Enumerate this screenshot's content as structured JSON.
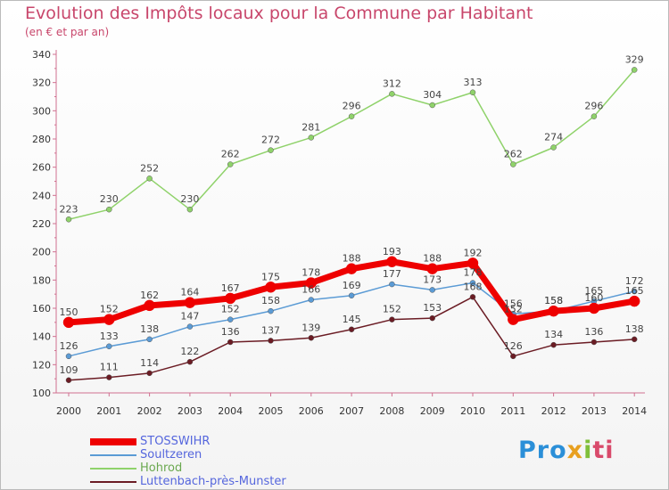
{
  "title": "Evolution des Impôts locaux pour la Commune par Habitant",
  "subtitle": "(en € et par an)",
  "logo": {
    "parts": [
      "Pro",
      "x",
      "i",
      "ti"
    ]
  },
  "chart_data": {
    "type": "line",
    "x": [
      "2000",
      "2001",
      "2002",
      "2003",
      "2004",
      "2005",
      "2006",
      "2007",
      "2008",
      "2009",
      "2010",
      "2011",
      "2012",
      "2013",
      "2014"
    ],
    "ylim": [
      100,
      340
    ],
    "yticks": [
      100,
      120,
      140,
      160,
      180,
      200,
      220,
      240,
      260,
      280,
      300,
      320,
      340
    ],
    "grid": false,
    "legend_position": "bottom-left",
    "series": [
      {
        "name": "STOSSWIHR",
        "color": "#ee0000",
        "values": [
          150,
          152,
          162,
          164,
          167,
          175,
          178,
          188,
          193,
          188,
          192,
          152,
          158,
          160,
          165
        ]
      },
      {
        "name": "Soultzeren",
        "color": "#5b9bd5",
        "values": [
          126,
          133,
          138,
          147,
          152,
          158,
          166,
          169,
          177,
          173,
          178,
          156,
          158,
          165,
          172
        ]
      },
      {
        "name": "Hohrod",
        "color": "#8fd26a",
        "values": [
          223,
          230,
          252,
          230,
          262,
          272,
          281,
          296,
          312,
          304,
          313,
          262,
          274,
          296,
          329
        ]
      },
      {
        "name": "Luttenbach-près-Munster",
        "color": "#6b1c24",
        "values": [
          109,
          111,
          114,
          122,
          136,
          137,
          139,
          145,
          152,
          153,
          168,
          126,
          134,
          136,
          138
        ]
      }
    ]
  }
}
